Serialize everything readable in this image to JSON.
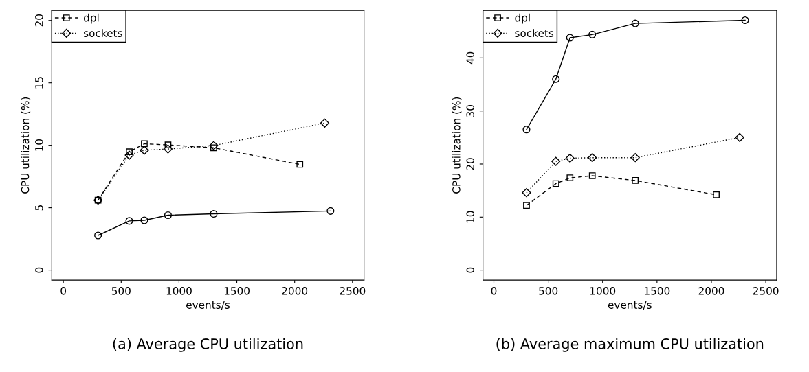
{
  "chart_data": [
    {
      "type": "line",
      "xlabel": "events/s",
      "ylabel": "CPU utilization (%)",
      "xlim": [
        -100,
        2600
      ],
      "xticks": [
        0,
        500,
        1000,
        1500,
        2000,
        2500
      ],
      "ylim": [
        -0.8,
        20.8
      ],
      "yticks": [
        0,
        5,
        10,
        15,
        20
      ],
      "legend": "top left",
      "grid": false,
      "annotations": [
        "(a) Average CPU utilization"
      ],
      "series": [
        {
          "color": "#000000",
          "marker": "circle",
          "line_style": "solid",
          "x": [
            300,
            570,
            700,
            905,
            1300,
            2310
          ],
          "values": [
            2.78,
            3.94,
            3.99,
            4.4,
            4.51,
            4.74
          ]
        },
        {
          "name": "dpl",
          "color": "#000000",
          "marker": "square",
          "line_style": "dashed",
          "x": [
            300,
            570,
            700,
            905,
            1300,
            2045
          ],
          "values": [
            5.6,
            9.48,
            10.12,
            10.03,
            9.8,
            8.47
          ]
        },
        {
          "name": "sockets",
          "color": "#000000",
          "marker": "diamond",
          "line_style": "dotted",
          "x": [
            300,
            570,
            700,
            905,
            1300,
            2260
          ],
          "values": [
            5.6,
            9.21,
            9.6,
            9.7,
            9.98,
            11.78
          ]
        }
      ]
    },
    {
      "type": "line",
      "xlabel": "events/s",
      "ylabel": "CPU utilization (%)",
      "xlim": [
        -100,
        2600
      ],
      "xticks": [
        0,
        500,
        1000,
        1500,
        2000,
        2500
      ],
      "ylim": [
        -1.88,
        48.95
      ],
      "yticks": [
        0,
        10,
        20,
        30,
        40
      ],
      "legend": "top left",
      "grid": false,
      "annotations": [
        "(b) Average maximum CPU utilization"
      ],
      "series": [
        {
          "color": "#000000",
          "marker": "circle",
          "line_style": "solid",
          "x": [
            300,
            570,
            700,
            905,
            1300,
            2310
          ],
          "values": [
            26.5,
            36.0,
            43.8,
            44.4,
            46.5,
            47.1
          ]
        },
        {
          "name": "dpl",
          "color": "#000000",
          "marker": "square",
          "line_style": "dashed",
          "x": [
            300,
            570,
            700,
            905,
            1300,
            2045
          ],
          "values": [
            12.2,
            16.3,
            17.4,
            17.8,
            16.9,
            14.2
          ]
        },
        {
          "name": "sockets",
          "color": "#000000",
          "marker": "diamond",
          "line_style": "dotted",
          "x": [
            300,
            570,
            700,
            905,
            1300,
            2260
          ],
          "values": [
            14.6,
            20.5,
            21.1,
            21.2,
            21.2,
            25.0
          ]
        }
      ]
    }
  ]
}
